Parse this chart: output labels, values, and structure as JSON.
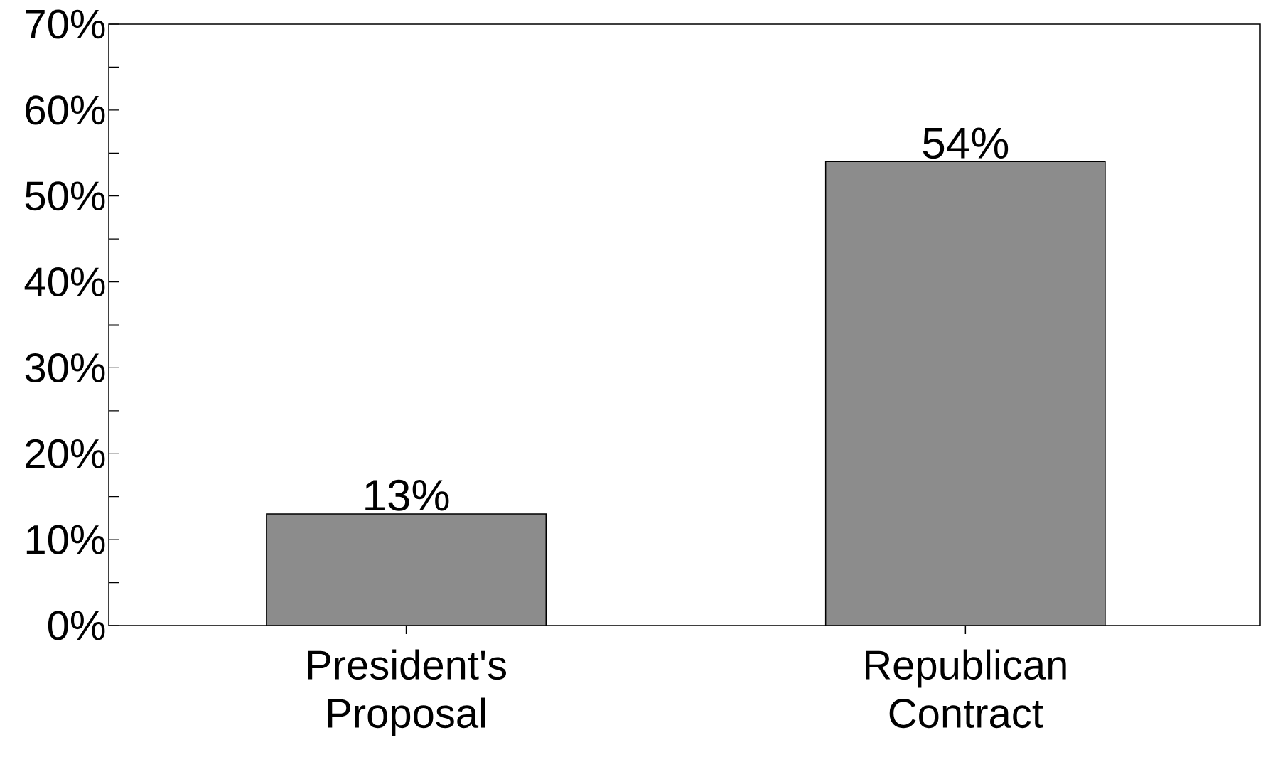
{
  "chart_data": {
    "type": "bar",
    "categories": [
      "President's Proposal",
      "Republican Contract"
    ],
    "values": [
      13,
      54
    ],
    "value_labels": [
      "13%",
      "54%"
    ],
    "color": "#8c8c8c",
    "ylim": [
      0,
      70
    ],
    "yticks": [
      {
        "value": 0,
        "label": "0%"
      },
      {
        "value": 10,
        "label": "10%"
      },
      {
        "value": 20,
        "label": "20%"
      },
      {
        "value": 30,
        "label": "30%"
      },
      {
        "value": 40,
        "label": "40%"
      },
      {
        "value": 50,
        "label": "50%"
      },
      {
        "value": 60,
        "label": "60%"
      },
      {
        "value": 70,
        "label": "70%"
      }
    ],
    "grid": false
  }
}
